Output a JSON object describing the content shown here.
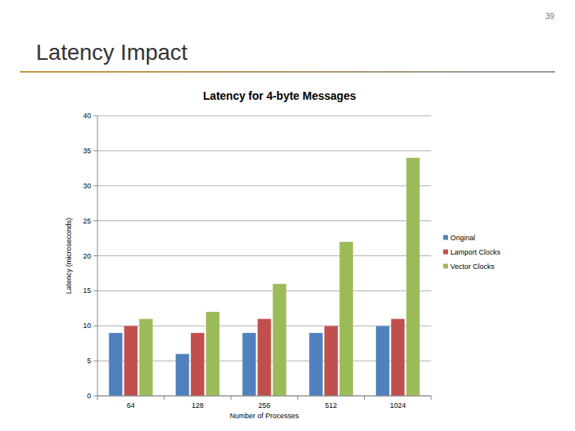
{
  "slide": {
    "title": "Latency Impact",
    "page_number": "39"
  },
  "chart_data": {
    "type": "bar",
    "title": "Latency for 4-byte Messages",
    "x_label": "Number of Processes",
    "y_label": "Latency (microseconds)",
    "categories": [
      "64",
      "128",
      "256",
      "512",
      "1024"
    ],
    "series": [
      {
        "name": "Original",
        "color": "#4f81bd",
        "values": [
          9,
          6,
          9,
          9,
          10
        ]
      },
      {
        "name": "Lamport Clocks",
        "color": "#c0504d",
        "values": [
          10,
          9,
          11,
          10,
          11
        ]
      },
      {
        "name": "Vector Clocks",
        "color": "#9bbb59",
        "values": [
          11,
          12,
          16,
          22,
          34
        ]
      }
    ],
    "ylim": [
      0,
      40
    ],
    "yticks": [
      0,
      5,
      10,
      15,
      20,
      25,
      30,
      35,
      40
    ],
    "grid": true,
    "legend": "right"
  }
}
